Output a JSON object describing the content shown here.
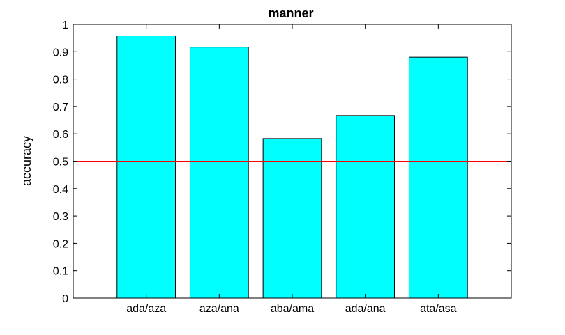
{
  "chart_data": {
    "type": "bar",
    "title": "manner",
    "xlabel": "",
    "ylabel": "accuracy",
    "categories": [
      "ada/aza",
      "aza/ana",
      "aba/ama",
      "ada/ana",
      "ata/asa"
    ],
    "values": [
      0.958,
      0.917,
      0.583,
      0.667,
      0.88
    ],
    "ylim": [
      0,
      1
    ],
    "yticks": [
      "0",
      "0.1",
      "0.2",
      "0.3",
      "0.4",
      "0.5",
      "0.6",
      "0.7",
      "0.8",
      "0.9",
      "1"
    ],
    "reference_line": 0.5,
    "grid": false,
    "legend": "none",
    "colors": {
      "bar_fill": "#00ffff",
      "bar_edge": "#000000",
      "reference_line": "#ff0000",
      "axes": "#000000"
    }
  }
}
